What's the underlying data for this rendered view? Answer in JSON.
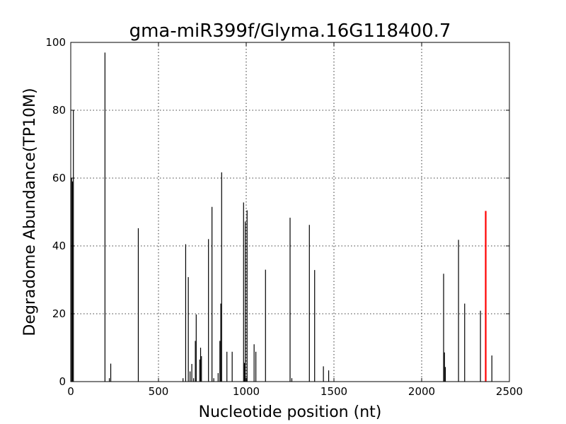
{
  "chart_data": {
    "type": "bar",
    "title": "gma-miR399f/Glyma.16G118400.7",
    "xlabel": "Nucleotide position (nt)",
    "ylabel": "Degradome Abundance(TP10M)",
    "xlim": [
      0,
      2500
    ],
    "ylim": [
      0,
      100
    ],
    "xticks": [
      "0",
      "500",
      "1000",
      "1500",
      "2000",
      "2500"
    ],
    "yticks": [
      "0",
      "20",
      "40",
      "60",
      "80",
      "100"
    ],
    "grid": true,
    "colors": {
      "default": "#000000",
      "highlight": "#ff0000"
    },
    "series": [
      {
        "x": [
          5,
          10,
          15,
          195,
          220,
          228,
          385,
          640,
          655,
          670,
          680,
          690,
          700,
          710,
          715,
          735,
          740,
          745,
          785,
          805,
          815,
          840,
          850,
          855,
          860,
          890,
          920,
          985,
          990,
          995,
          1000,
          1005,
          1045,
          1055,
          1110,
          1250,
          1260,
          1360,
          1390,
          1440,
          1470,
          2125,
          2130,
          2135,
          2210,
          2245,
          2335,
          2400
        ],
        "values": [
          60,
          59,
          80,
          97,
          1,
          5.3,
          45.2,
          1,
          40.5,
          30.8,
          3,
          5.2,
          1,
          12,
          19.8,
          6.5,
          10,
          7.5,
          42,
          51.5,
          1,
          2.5,
          12,
          23,
          61.7,
          8.8,
          8.8,
          52.8,
          5.5,
          47.2,
          1,
          50.5,
          11,
          8.8,
          33,
          48.3,
          1,
          46.2,
          32.9,
          4.5,
          3.3,
          31.8,
          8.6,
          4.3,
          41.8,
          23,
          20.9,
          7.7
        ]
      },
      {
        "highlight": true,
        "x": [
          2365
        ],
        "values": [
          50.3
        ]
      }
    ]
  }
}
